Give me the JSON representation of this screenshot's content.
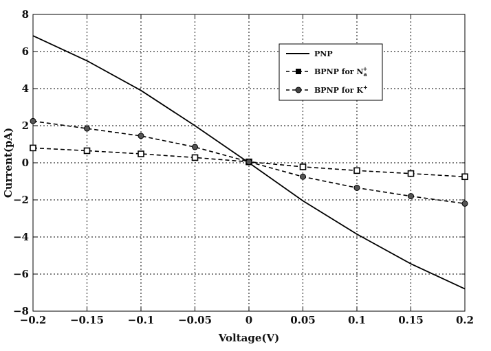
{
  "chart_data": {
    "type": "line",
    "xlabel": "Voltage(V)",
    "ylabel": "Current(pA)",
    "xlim": [
      -0.2,
      0.2
    ],
    "ylim": [
      -8,
      8
    ],
    "xticks": [
      -0.2,
      -0.15,
      -0.1,
      -0.05,
      0,
      0.05,
      0.1,
      0.15,
      0.2
    ],
    "xtick_labels": [
      "−0.2",
      "−0.15",
      "−0.1",
      "−0.05",
      "0",
      "0.05",
      "0.1",
      "0.15",
      "0.2"
    ],
    "yticks": [
      -8,
      -6,
      -4,
      -2,
      0,
      2,
      4,
      6,
      8
    ],
    "ytick_labels": [
      "−8",
      "−6",
      "−4",
      "−2",
      "0",
      "2",
      "4",
      "6",
      "8"
    ],
    "grid": true,
    "legend_position": "top-right",
    "series": [
      {
        "name": "PNP",
        "line": "solid",
        "marker": "none",
        "x": [
          -0.2,
          -0.15,
          -0.1,
          -0.05,
          0,
          0.05,
          0.1,
          0.15,
          0.2
        ],
        "y": [
          6.85,
          5.5,
          3.9,
          2.0,
          0.0,
          -2.05,
          -3.85,
          -5.45,
          -6.8
        ]
      },
      {
        "name_parts": [
          "BPNP for N",
          "a",
          "+"
        ],
        "line": "dashed",
        "marker": "square",
        "x": [
          -0.2,
          -0.15,
          -0.1,
          -0.05,
          0,
          0.05,
          0.1,
          0.15,
          0.2
        ],
        "y": [
          0.8,
          0.65,
          0.48,
          0.28,
          0.05,
          -0.22,
          -0.42,
          -0.58,
          -0.75
        ]
      },
      {
        "name_parts": [
          "BPNP for K",
          "",
          "+"
        ],
        "line": "dashed",
        "marker": "circle",
        "x": [
          -0.2,
          -0.15,
          -0.1,
          -0.05,
          0,
          0.05,
          0.1,
          0.15,
          0.2
        ],
        "y": [
          2.25,
          1.85,
          1.45,
          0.85,
          0.05,
          -0.75,
          -1.35,
          -1.8,
          -2.2
        ]
      }
    ]
  }
}
